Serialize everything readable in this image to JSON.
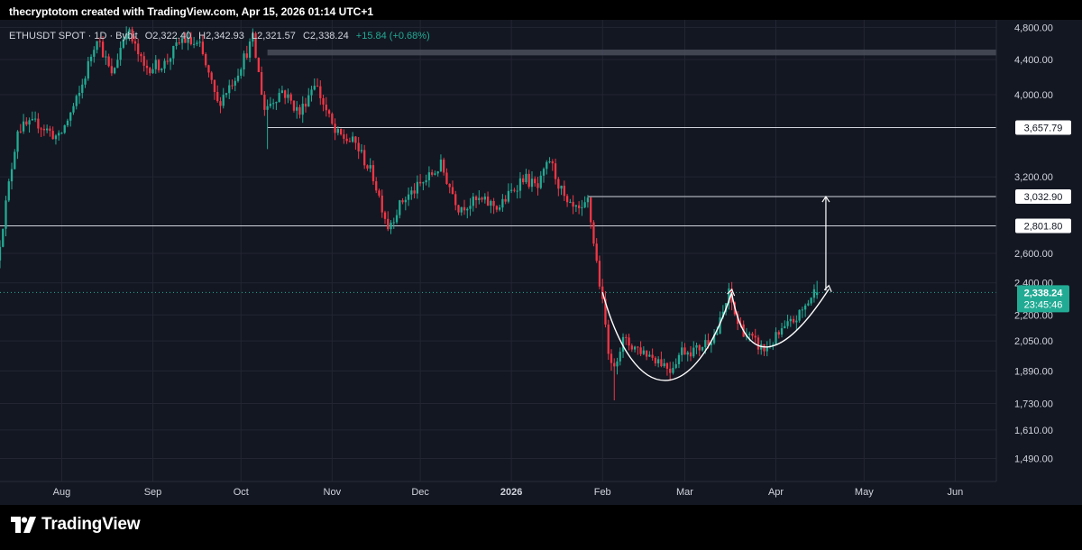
{
  "header": {
    "credit": "thecryptotom created with TradingView.com, Apr 15, 2026 01:14 UTC+1"
  },
  "brand": {
    "name": "TradingView"
  },
  "colors": {
    "up": "#22ab94",
    "down": "#f23645",
    "background": "#131722",
    "text": "#d1d4dc",
    "grid": "#232632"
  },
  "legend": {
    "symbol": "ETHUSDT SPOT · 1D · Bybit",
    "o": "O2,322.40",
    "h": "H2,342.93",
    "l": "L2,321.57",
    "c": "C2,338.24",
    "change": "+15.84 (+0.68%)"
  },
  "chart_data": {
    "type": "candlestick",
    "symbol": "ETHUSDT SPOT",
    "interval": "1D",
    "exchange": "Bybit",
    "y_scale": "log",
    "ylim": [
      1400,
      4900
    ],
    "y_ticks": [
      "4,800.00",
      "4,400.00",
      "4,000.00",
      "3,200.00",
      "2,600.00",
      "2,400.00",
      "2,200.00",
      "2,050.00",
      "1,890.00",
      "1,730.00",
      "1,610.00",
      "1,490.00"
    ],
    "x_ticks": [
      "Aug",
      "Sep",
      "Oct",
      "Nov",
      "Dec",
      "2026",
      "Feb",
      "Mar",
      "Apr",
      "May",
      "Jun"
    ],
    "x_range": [
      "2025-07-11",
      "2026-06-15"
    ],
    "last_price": {
      "label": "2,338.24",
      "value": 2338.24,
      "countdown": "23:45:46"
    },
    "horizontal_levels": [
      {
        "label": "3,657.79",
        "value": 3657.79
      },
      {
        "label": "3,032.90",
        "value": 3032.9
      },
      {
        "label": "2,801.80",
        "value": 2801.8
      }
    ],
    "resistance_zone": [
      4450,
      4520
    ],
    "anchor_points": [
      [
        "2025-07-11",
        2550
      ],
      [
        "2025-07-18",
        3650
      ],
      [
        "2025-07-25",
        3700
      ],
      [
        "2025-08-01",
        3550
      ],
      [
        "2025-08-08",
        4000
      ],
      [
        "2025-08-14",
        4700
      ],
      [
        "2025-08-19",
        4200
      ],
      [
        "2025-08-24",
        4800
      ],
      [
        "2025-08-30",
        4300
      ],
      [
        "2025-09-06",
        4350
      ],
      [
        "2025-09-12",
        4650
      ],
      [
        "2025-09-18",
        4550
      ],
      [
        "2025-09-24",
        3900
      ],
      [
        "2025-09-30",
        4200
      ],
      [
        "2025-10-06",
        4650
      ],
      [
        "2025-10-10",
        3850
      ],
      [
        "2025-10-16",
        4050
      ],
      [
        "2025-10-22",
        3800
      ],
      [
        "2025-10-27",
        4150
      ],
      [
        "2025-11-03",
        3600
      ],
      [
        "2025-11-10",
        3500
      ],
      [
        "2025-11-16",
        3200
      ],
      [
        "2025-11-21",
        2800
      ],
      [
        "2025-11-26",
        3000
      ],
      [
        "2025-12-03",
        3150
      ],
      [
        "2025-12-09",
        3300
      ],
      [
        "2025-12-15",
        2950
      ],
      [
        "2025-12-22",
        3000
      ],
      [
        "2025-12-29",
        2950
      ],
      [
        "2026-01-06",
        3200
      ],
      [
        "2026-01-11",
        3100
      ],
      [
        "2026-01-15",
        3350
      ],
      [
        "2026-01-21",
        2950
      ],
      [
        "2026-01-26",
        2900
      ],
      [
        "2026-01-28",
        3000
      ],
      [
        "2026-02-01",
        2400
      ],
      [
        "2026-02-05",
        1900
      ],
      [
        "2026-02-09",
        2050
      ],
      [
        "2026-02-15",
        2000
      ],
      [
        "2026-02-21",
        1950
      ],
      [
        "2026-02-25",
        1900
      ],
      [
        "2026-03-01",
        2000
      ],
      [
        "2026-03-06",
        2000
      ],
      [
        "2026-03-13",
        2100
      ],
      [
        "2026-03-17",
        2330
      ],
      [
        "2026-03-20",
        2150
      ],
      [
        "2026-03-25",
        2050
      ],
      [
        "2026-03-29",
        2000
      ],
      [
        "2026-04-04",
        2100
      ],
      [
        "2026-04-10",
        2200
      ],
      [
        "2026-04-15",
        2338
      ]
    ],
    "projection_arrow": {
      "date": "2026-04-18",
      "from": 2350,
      "to": 3032.9
    },
    "pattern": "cup and handle"
  }
}
